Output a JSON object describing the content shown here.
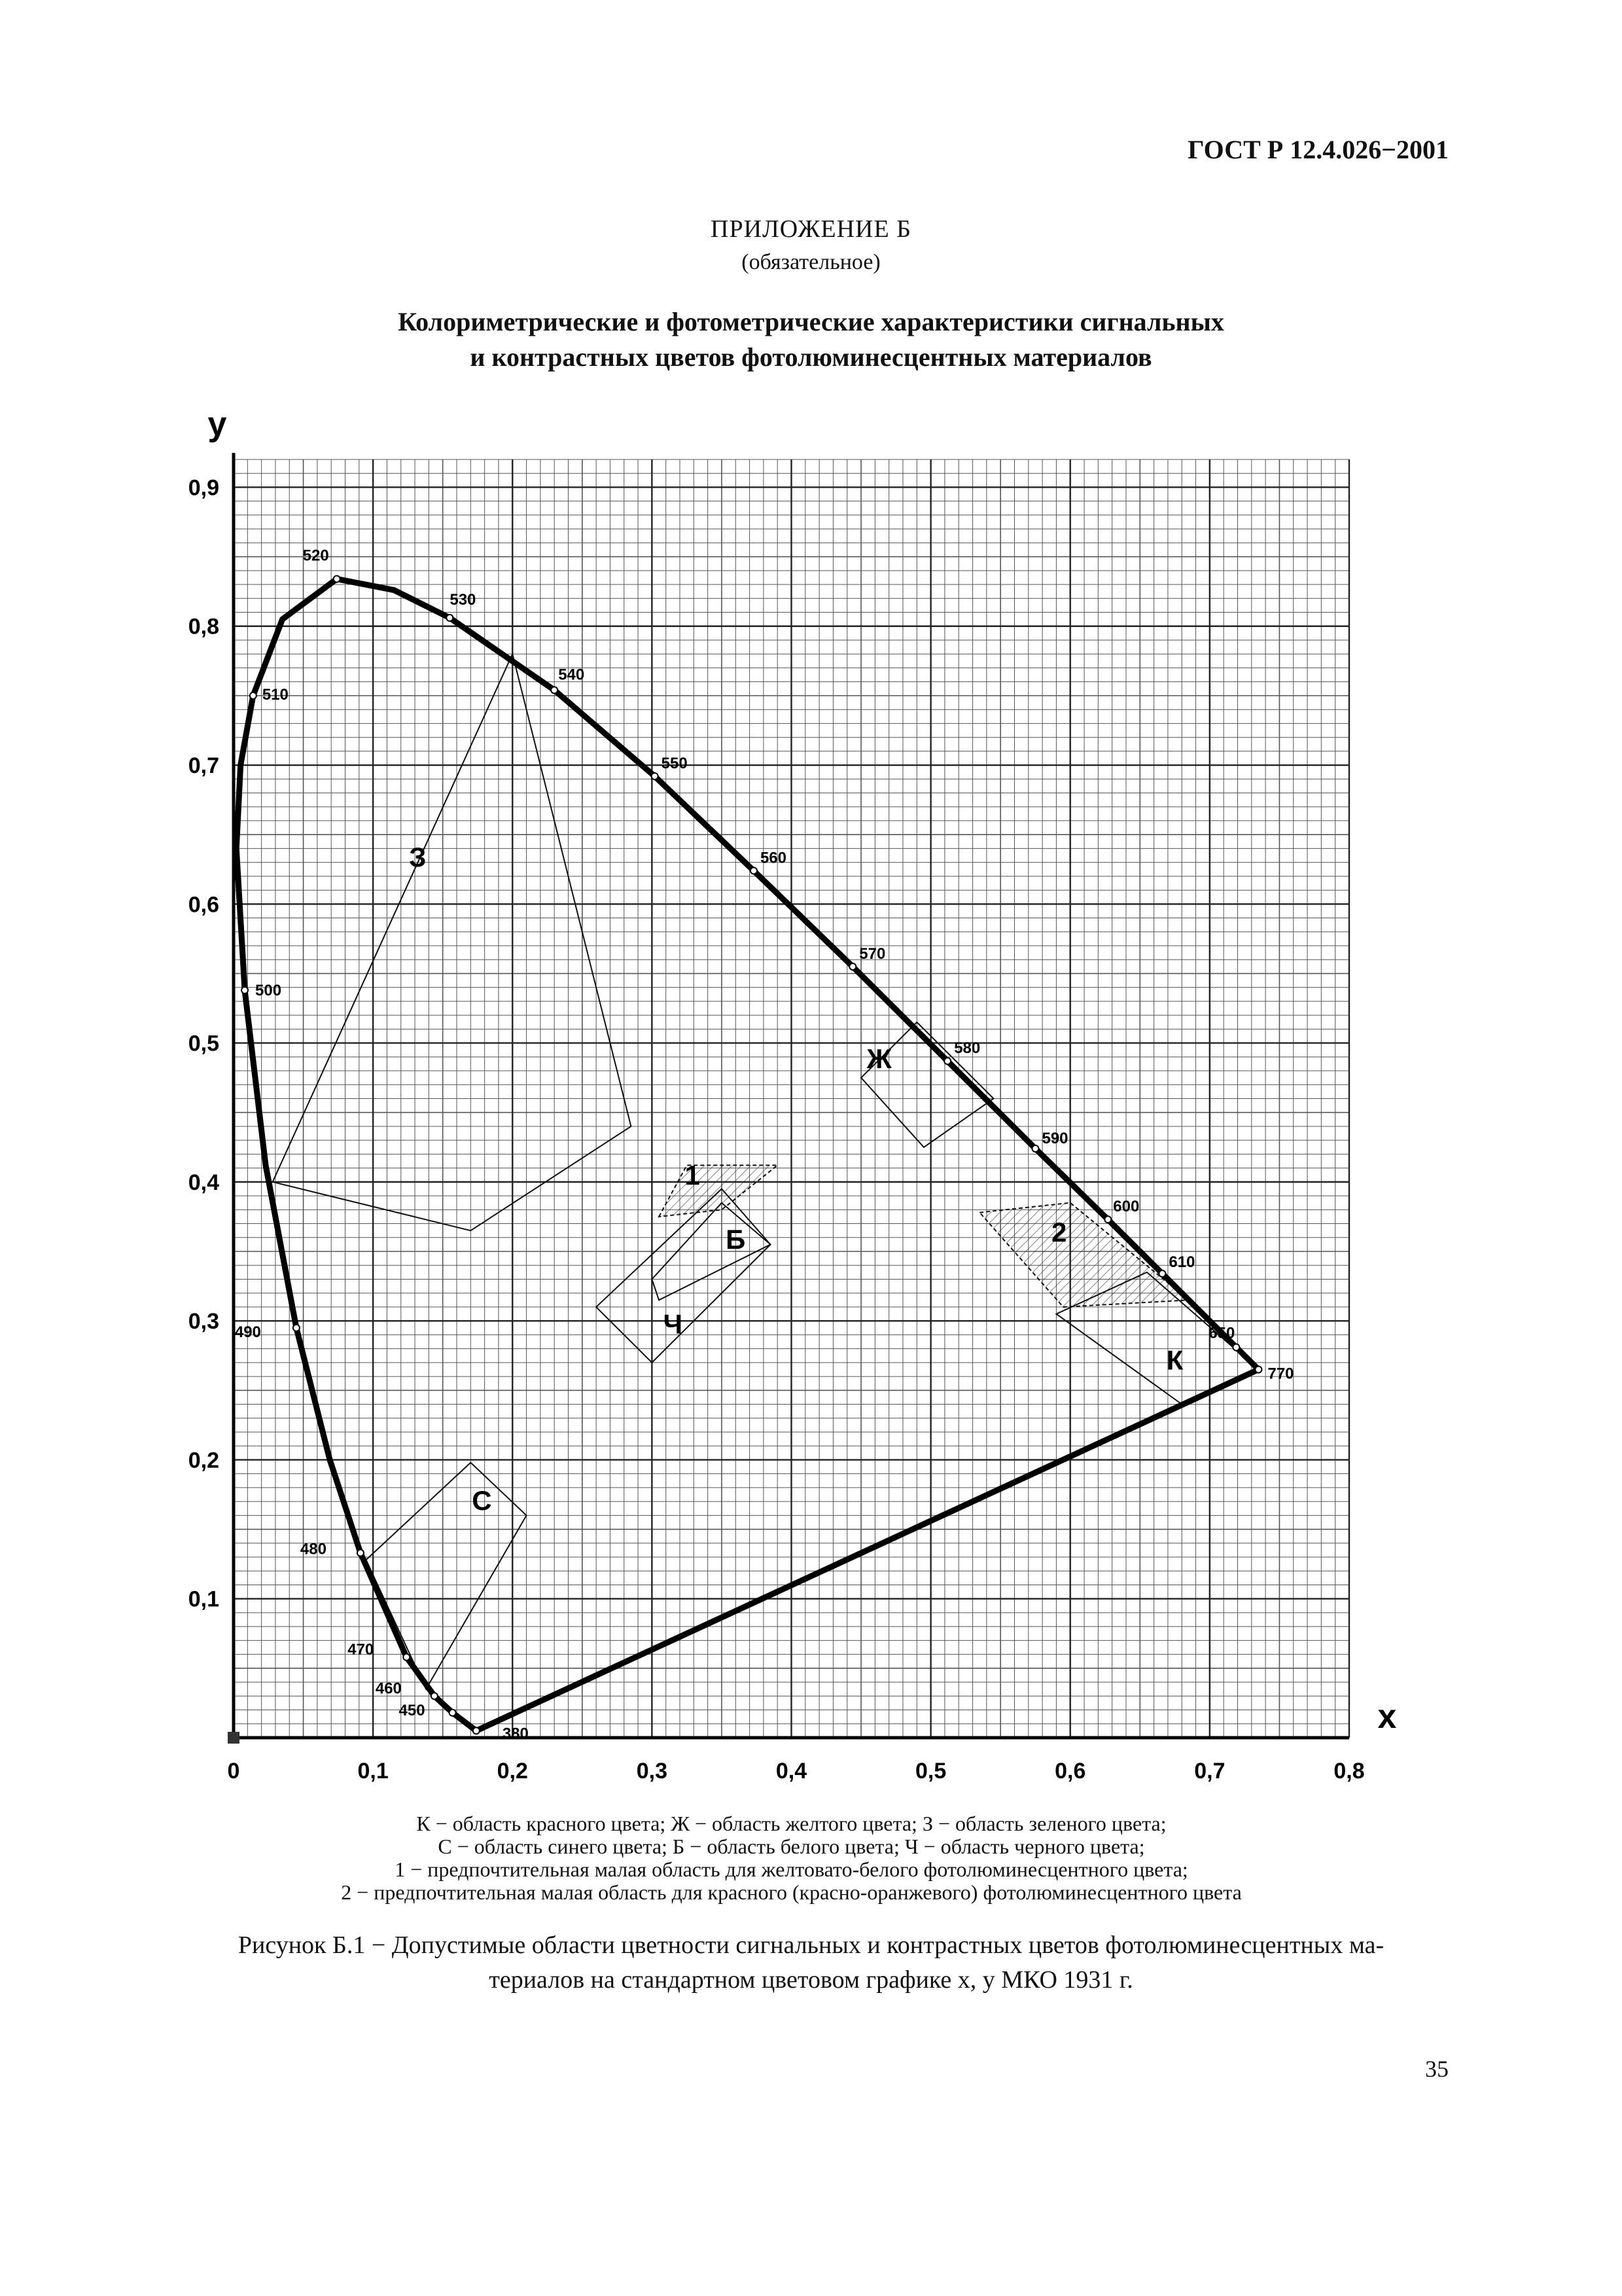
{
  "header": {
    "standard": "ГОСТ Р 12.4.026−2001"
  },
  "appendix": {
    "title": "ПРИЛОЖЕНИЕ Б",
    "note": "(обязательное)",
    "heading_line1": "Колориметрические и фотометрические характеристики сигнальных",
    "heading_line2": "и контрастных цветов фотолюминесцентных материалов"
  },
  "chart_data": {
    "type": "line",
    "title": "",
    "xlabel": "x",
    "ylabel": "y",
    "xlim": [
      0,
      0.8
    ],
    "ylim": [
      0,
      0.92
    ],
    "grid": true,
    "x_tick_labels": [
      "0",
      "0,1",
      "0,2",
      "0,3",
      "0,4",
      "0,5",
      "0,6",
      "0,7",
      "0,8"
    ],
    "y_tick_labels": [
      "0,1",
      "0,2",
      "0,3",
      "0,4",
      "0,5",
      "0,6",
      "0,7",
      "0,8",
      "0,9"
    ],
    "spectral_locus": [
      {
        "nm": "380",
        "x": 0.174,
        "y": 0.005
      },
      {
        "nm": "450",
        "x": 0.157,
        "y": 0.018
      },
      {
        "nm": "460",
        "x": 0.144,
        "y": 0.03
      },
      {
        "nm": "470",
        "x": 0.124,
        "y": 0.058
      },
      {
        "nm": "480",
        "x": 0.091,
        "y": 0.133
      },
      {
        "nm": "490",
        "x": 0.045,
        "y": 0.295
      },
      {
        "nm": "500",
        "x": 0.008,
        "y": 0.538
      },
      {
        "nm": "510",
        "x": 0.014,
        "y": 0.75
      },
      {
        "nm": "520",
        "x": 0.074,
        "y": 0.834
      },
      {
        "nm": "530",
        "x": 0.155,
        "y": 0.806
      },
      {
        "nm": "540",
        "x": 0.23,
        "y": 0.754
      },
      {
        "nm": "550",
        "x": 0.302,
        "y": 0.692
      },
      {
        "nm": "560",
        "x": 0.373,
        "y": 0.624
      },
      {
        "nm": "570",
        "x": 0.444,
        "y": 0.555
      },
      {
        "nm": "580",
        "x": 0.512,
        "y": 0.487
      },
      {
        "nm": "590",
        "x": 0.575,
        "y": 0.424
      },
      {
        "nm": "600",
        "x": 0.627,
        "y": 0.373
      },
      {
        "nm": "610",
        "x": 0.666,
        "y": 0.334
      },
      {
        "nm": "650",
        "x": 0.719,
        "y": 0.281
      },
      {
        "nm": "770",
        "x": 0.735,
        "y": 0.265
      }
    ],
    "locus_curve": [
      [
        0.174,
        0.005
      ],
      [
        0.157,
        0.018
      ],
      [
        0.144,
        0.03
      ],
      [
        0.124,
        0.058
      ],
      [
        0.091,
        0.133
      ],
      [
        0.069,
        0.2
      ],
      [
        0.045,
        0.295
      ],
      [
        0.023,
        0.412
      ],
      [
        0.008,
        0.538
      ],
      [
        0.002,
        0.64
      ],
      [
        0.005,
        0.7
      ],
      [
        0.014,
        0.75
      ],
      [
        0.035,
        0.805
      ],
      [
        0.074,
        0.834
      ],
      [
        0.115,
        0.826
      ],
      [
        0.155,
        0.806
      ],
      [
        0.23,
        0.754
      ],
      [
        0.302,
        0.692
      ],
      [
        0.373,
        0.624
      ],
      [
        0.444,
        0.555
      ],
      [
        0.512,
        0.487
      ],
      [
        0.575,
        0.424
      ],
      [
        0.627,
        0.373
      ],
      [
        0.666,
        0.334
      ],
      [
        0.7,
        0.3
      ],
      [
        0.719,
        0.281
      ],
      [
        0.735,
        0.265
      ]
    ],
    "regions": [
      {
        "label": "З",
        "points": [
          [
            0.2,
            0.78
          ],
          [
            0.285,
            0.44
          ],
          [
            0.17,
            0.365
          ],
          [
            0.028,
            0.4
          ]
        ]
      },
      {
        "label": "С",
        "points": [
          [
            0.095,
            0.128
          ],
          [
            0.17,
            0.198
          ],
          [
            0.21,
            0.16
          ],
          [
            0.138,
            0.035
          ]
        ]
      },
      {
        "label": "Ж",
        "points": [
          [
            0.45,
            0.475
          ],
          [
            0.49,
            0.515
          ],
          [
            0.545,
            0.46
          ],
          [
            0.495,
            0.425
          ]
        ]
      },
      {
        "label": "К",
        "points": [
          [
            0.655,
            0.335
          ],
          [
            0.735,
            0.265
          ],
          [
            0.68,
            0.24
          ],
          [
            0.59,
            0.305
          ]
        ]
      },
      {
        "label": "Б",
        "points": [
          [
            0.3,
            0.33
          ],
          [
            0.35,
            0.385
          ],
          [
            0.385,
            0.355
          ],
          [
            0.305,
            0.315
          ]
        ]
      },
      {
        "label": "Ч",
        "points": [
          [
            0.26,
            0.31
          ],
          [
            0.35,
            0.395
          ],
          [
            0.385,
            0.355
          ],
          [
            0.3,
            0.27
          ]
        ]
      },
      {
        "label": "1",
        "points": [
          [
            0.305,
            0.375
          ],
          [
            0.325,
            0.412
          ],
          [
            0.39,
            0.412
          ],
          [
            0.35,
            0.38
          ]
        ]
      },
      {
        "label": "2",
        "points": [
          [
            0.535,
            0.378
          ],
          [
            0.6,
            0.385
          ],
          [
            0.685,
            0.315
          ],
          [
            0.595,
            0.31
          ]
        ]
      }
    ],
    "line_of_purples": [
      [
        0.174,
        0.005
      ],
      [
        0.735,
        0.265
      ]
    ]
  },
  "legend": {
    "line1": "К − область красного цвета; Ж − область желтого цвета; З − область зеленого цвета;",
    "line2": "С − область синего цвета; Б − область белого цвета; Ч − область черного цвета;",
    "line3": "1 − предпочтительная малая область для желтовато-белого фотолюминесцентного цвета;",
    "line4": "2 − предпочтительная малая область для красного (красно-оранжевого) фотолюминесцентного цвета"
  },
  "caption": {
    "line1": "Рисунок Б.1 − Допустимые области цветности сигнальных и контрастных цветов фотолюминесцентных ма-",
    "line2": "териалов на стандартном цветовом графике x, y МКО 1931 г."
  },
  "page_number": "35"
}
